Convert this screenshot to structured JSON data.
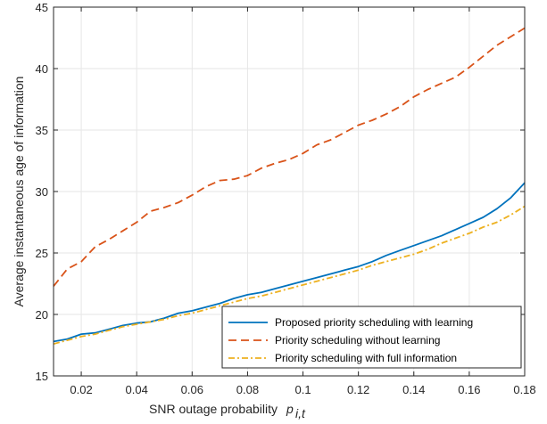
{
  "chart_data": {
    "type": "line",
    "xlabel": "SNR outage probability",
    "xlabel_symbol": "p",
    "xlabel_subscript": "i,t",
    "ylabel": "Average instantaneous age of information",
    "xlim": [
      0.01,
      0.18
    ],
    "ylim": [
      15,
      45
    ],
    "xticks": [
      0.02,
      0.04,
      0.06,
      0.08,
      0.1,
      0.12,
      0.14,
      0.16,
      0.18
    ],
    "xtick_labels": [
      "0.02",
      "0.04",
      "0.06",
      "0.08",
      "0.1",
      "0.12",
      "0.14",
      "0.16",
      "0.18"
    ],
    "yticks": [
      15,
      20,
      25,
      30,
      35,
      40,
      45
    ],
    "ytick_labels": [
      "15",
      "20",
      "25",
      "30",
      "35",
      "40",
      "45"
    ],
    "grid": true,
    "legend_position": "bottom-right",
    "x": [
      0.01,
      0.015,
      0.02,
      0.025,
      0.03,
      0.035,
      0.04,
      0.045,
      0.05,
      0.055,
      0.06,
      0.065,
      0.07,
      0.075,
      0.08,
      0.085,
      0.09,
      0.095,
      0.1,
      0.105,
      0.11,
      0.115,
      0.12,
      0.125,
      0.13,
      0.135,
      0.14,
      0.145,
      0.15,
      0.155,
      0.16,
      0.165,
      0.17,
      0.175,
      0.18
    ],
    "series": [
      {
        "name": "Proposed priority scheduling with learning",
        "color": "#0072BD",
        "dash": "solid",
        "values": [
          17.8,
          18.0,
          18.4,
          18.5,
          18.8,
          19.1,
          19.3,
          19.4,
          19.7,
          20.1,
          20.3,
          20.6,
          20.9,
          21.3,
          21.6,
          21.8,
          22.1,
          22.4,
          22.7,
          23.0,
          23.3,
          23.6,
          23.9,
          24.3,
          24.8,
          25.2,
          25.6,
          26.0,
          26.4,
          26.9,
          27.4,
          27.9,
          28.6,
          29.5,
          30.7
        ]
      },
      {
        "name": "Priority scheduling without learning",
        "color": "#D95319",
        "dash": "dashed",
        "values": [
          22.3,
          23.7,
          24.3,
          25.5,
          26.1,
          26.8,
          27.5,
          28.4,
          28.7,
          29.1,
          29.7,
          30.4,
          30.9,
          31.0,
          31.3,
          31.9,
          32.3,
          32.6,
          33.1,
          33.8,
          34.2,
          34.8,
          35.4,
          35.8,
          36.3,
          36.9,
          37.7,
          38.3,
          38.8,
          39.3,
          40.1,
          41.0,
          41.9,
          42.6,
          43.3
        ]
      },
      {
        "name": "Priority scheduling with full information",
        "color": "#EDB120",
        "dash": "dashdot",
        "values": [
          17.6,
          17.9,
          18.2,
          18.4,
          18.7,
          19.0,
          19.2,
          19.4,
          19.6,
          19.9,
          20.1,
          20.4,
          20.7,
          21.0,
          21.3,
          21.5,
          21.8,
          22.1,
          22.4,
          22.7,
          23.0,
          23.3,
          23.6,
          24.0,
          24.3,
          24.6,
          24.9,
          25.3,
          25.8,
          26.2,
          26.6,
          27.1,
          27.5,
          28.1,
          28.8
        ]
      }
    ]
  }
}
